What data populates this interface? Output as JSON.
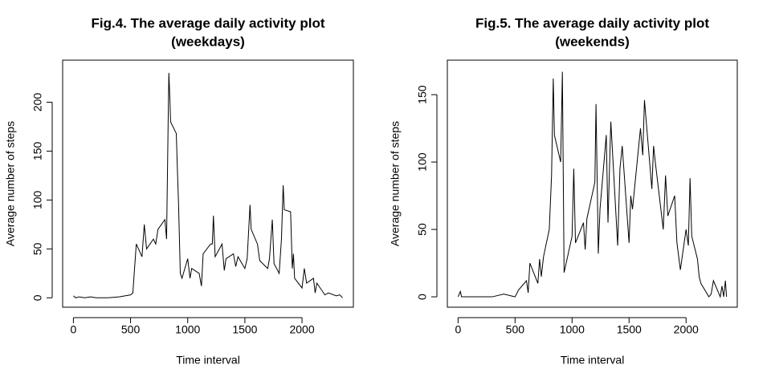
{
  "chart_data": [
    {
      "type": "line",
      "title": [
        "Fig.4. The average daily activity plot",
        "(weekdays)"
      ],
      "x_label": "Time interval",
      "y_label": "Average number of steps",
      "x": [
        0,
        20,
        50,
        100,
        150,
        200,
        300,
        400,
        450,
        500,
        520,
        535,
        550,
        600,
        620,
        640,
        700,
        720,
        740,
        800,
        815,
        830,
        835,
        845,
        850,
        900,
        910,
        920,
        935,
        950,
        1000,
        1020,
        1035,
        1100,
        1120,
        1135,
        1200,
        1215,
        1225,
        1240,
        1300,
        1320,
        1335,
        1400,
        1420,
        1440,
        1500,
        1520,
        1545,
        1555,
        1610,
        1630,
        1700,
        1715,
        1740,
        1755,
        1800,
        1820,
        1835,
        1845,
        1900,
        1915,
        1925,
        1935,
        2000,
        2020,
        2040,
        2100,
        2115,
        2130,
        2200,
        2230,
        2300,
        2330,
        2355
      ],
      "series": [
        {
          "color": "#000000",
          "values": [
            2,
            0,
            1,
            0,
            1,
            0,
            0,
            1,
            2,
            3,
            5,
            30,
            55,
            42,
            75,
            50,
            60,
            55,
            70,
            80,
            60,
            190,
            230,
            200,
            180,
            168,
            130,
            95,
            25,
            20,
            40,
            20,
            30,
            25,
            12,
            45,
            55,
            55,
            84,
            42,
            55,
            28,
            40,
            45,
            32,
            42,
            30,
            40,
            95,
            70,
            55,
            38,
            30,
            40,
            80,
            35,
            25,
            60,
            115,
            90,
            88,
            30,
            45,
            20,
            10,
            30,
            15,
            20,
            5,
            15,
            3,
            5,
            2,
            3,
            0
          ]
        }
      ],
      "xlim": [
        -94.2,
        2449.2
      ],
      "ylim": [
        -9.6,
        243
      ],
      "xticks": [
        0,
        500,
        1000,
        1500,
        2000
      ],
      "yticks": [
        0,
        50,
        100,
        150,
        200
      ]
    },
    {
      "type": "line",
      "title": [
        "Fig.5. The average daily activity plot",
        "(weekends)"
      ],
      "x_label": "Time interval",
      "y_label": "Average number of steps",
      "x": [
        0,
        20,
        30,
        100,
        200,
        300,
        400,
        500,
        530,
        600,
        615,
        630,
        700,
        715,
        730,
        750,
        800,
        820,
        835,
        845,
        900,
        915,
        930,
        1000,
        1015,
        1030,
        1100,
        1115,
        1130,
        1200,
        1210,
        1230,
        1245,
        1300,
        1315,
        1340,
        1400,
        1420,
        1440,
        1500,
        1515,
        1530,
        1600,
        1620,
        1635,
        1700,
        1715,
        1730,
        1800,
        1820,
        1840,
        1900,
        1920,
        1950,
        2000,
        2020,
        2035,
        2050,
        2100,
        2115,
        2130,
        2200,
        2220,
        2240,
        2300,
        2315,
        2330,
        2345,
        2355
      ],
      "series": [
        {
          "color": "#000000",
          "values": [
            0,
            4,
            0,
            0,
            0,
            0,
            2,
            0,
            5,
            12,
            3,
            25,
            10,
            28,
            15,
            30,
            50,
            90,
            162,
            120,
            100,
            167,
            18,
            45,
            95,
            40,
            55,
            35,
            58,
            85,
            143,
            32,
            65,
            120,
            55,
            130,
            38,
            95,
            112,
            40,
            75,
            65,
            125,
            105,
            146,
            80,
            112,
            100,
            50,
            90,
            60,
            75,
            40,
            20,
            50,
            38,
            88,
            45,
            28,
            15,
            10,
            0,
            2,
            12,
            0,
            8,
            0,
            12,
            0
          ]
        }
      ],
      "xlim": [
        -94.2,
        2449.2
      ],
      "ylim": [
        -7.7,
        175.6
      ],
      "xticks": [
        0,
        500,
        1000,
        1500,
        2000
      ],
      "yticks": [
        0,
        50,
        100,
        150
      ]
    }
  ]
}
